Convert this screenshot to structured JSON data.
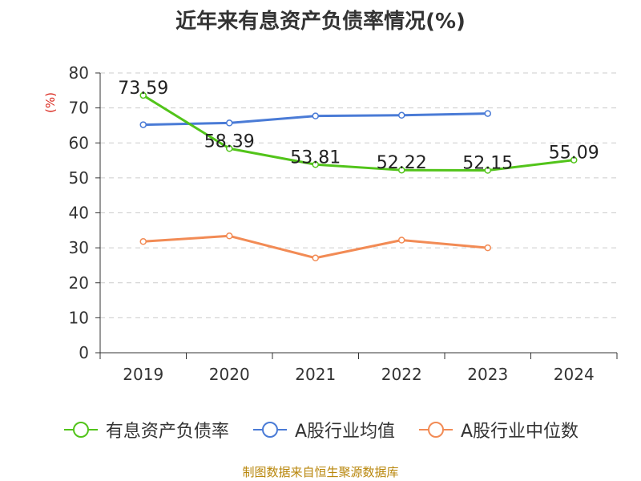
{
  "title": "近年来有息资产负债率情况(%)",
  "source_note": "制图数据来自恒生聚源数据库",
  "chart_data": {
    "type": "line",
    "categories": [
      "2019",
      "2020",
      "2021",
      "2022",
      "2023",
      "2024"
    ],
    "ylabel": "(%)",
    "ylim": [
      0,
      80
    ],
    "yticks": [
      0,
      10,
      20,
      30,
      40,
      50,
      60,
      70,
      80
    ],
    "grid": true,
    "legend_position": "bottom",
    "series": [
      {
        "name": "有息资产负债率",
        "color": "#52c41a",
        "values": [
          73.59,
          58.39,
          53.81,
          52.22,
          52.15,
          55.09
        ],
        "labels": [
          "73.59",
          "58.39",
          "53.81",
          "52.22",
          "52.15",
          "55.09"
        ],
        "show_labels": true
      },
      {
        "name": "A股行业均值",
        "color": "#4a7bd6",
        "values": [
          65.2,
          65.7,
          67.7,
          67.9,
          68.4,
          null
        ],
        "show_labels": false
      },
      {
        "name": "A股行业中位数",
        "color": "#f28b55",
        "values": [
          31.8,
          33.4,
          27.1,
          32.2,
          30.0,
          null
        ],
        "show_labels": false
      }
    ]
  },
  "colors": {
    "axis": "#333333",
    "grid": "#cccccc",
    "ylabel": "#d9261c",
    "title": "#333333",
    "source": "#b8860b"
  }
}
